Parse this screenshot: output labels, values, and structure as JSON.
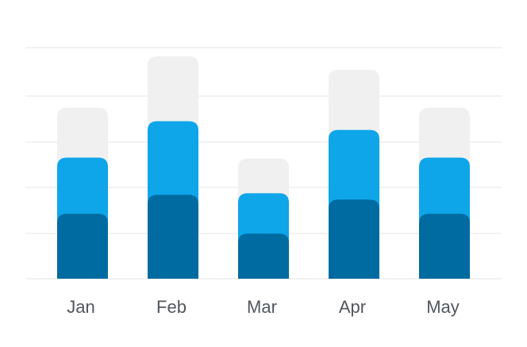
{
  "chart_data": {
    "type": "bar",
    "stacked": true,
    "categories": [
      "Jan",
      "Feb",
      "Mar",
      "Apr",
      "May"
    ],
    "series": [
      {
        "color": "#006ba1",
        "values": [
          82,
          106,
          57,
          100,
          82
        ]
      },
      {
        "color": "#0ea5e9",
        "values": [
          71,
          93,
          51,
          88,
          71
        ]
      },
      {
        "color": "#f0f0f0",
        "values": [
          63,
          82,
          44,
          76,
          63
        ]
      }
    ],
    "ylim": [
      0,
      292
    ],
    "grid": true,
    "colors": {
      "grid": "#e6e6e6",
      "axis_text": "#50575e"
    }
  }
}
